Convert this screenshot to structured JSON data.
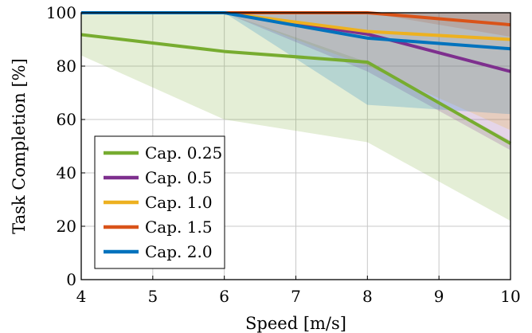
{
  "chart_data": {
    "type": "line",
    "title": "",
    "xlabel": "Speed [m/s]",
    "ylabel": "Task Completion [%]",
    "xlim": [
      4,
      10
    ],
    "ylim": [
      0,
      100
    ],
    "x_ticks": [
      "4",
      "5",
      "6",
      "7",
      "8",
      "9",
      "10"
    ],
    "y_ticks": [
      "0",
      "20",
      "40",
      "60",
      "80",
      "100"
    ],
    "grid": true,
    "legend_position": "bottom-left",
    "x": [
      4,
      6,
      8,
      10
    ],
    "series": [
      {
        "name": "Cap. 0.25",
        "color": "#77ac30",
        "values": [
          91.8,
          85.5,
          81.5,
          51
        ],
        "band_upper": [
          100,
          100,
          81.5,
          52
        ],
        "band_lower": [
          84,
          60,
          51.5,
          22
        ]
      },
      {
        "name": "Cap. 0.5",
        "color": "#7e2f8e",
        "values": [
          100,
          100,
          92,
          78
        ],
        "band_upper": [
          100,
          100,
          100,
          100
        ],
        "band_lower": [
          100,
          100,
          78,
          48.5
        ]
      },
      {
        "name": "Cap. 1.0",
        "color": "#edb120",
        "values": [
          100,
          100,
          93,
          90
        ],
        "band_upper": [
          100,
          100,
          100,
          100
        ],
        "band_lower": [
          100,
          100,
          80,
          56
        ]
      },
      {
        "name": "Cap. 1.5",
        "color": "#d95319",
        "values": [
          100,
          100,
          100,
          95.5
        ],
        "band_upper": [
          100,
          100,
          100,
          100
        ],
        "band_lower": [
          100,
          100,
          100,
          91
        ]
      },
      {
        "name": "Cap. 2.0",
        "color": "#0072bd",
        "values": [
          100,
          100,
          90.5,
          86.5
        ],
        "band_upper": [
          100,
          100,
          100,
          100
        ],
        "band_lower": [
          100,
          100,
          65.5,
          62
        ]
      }
    ]
  }
}
